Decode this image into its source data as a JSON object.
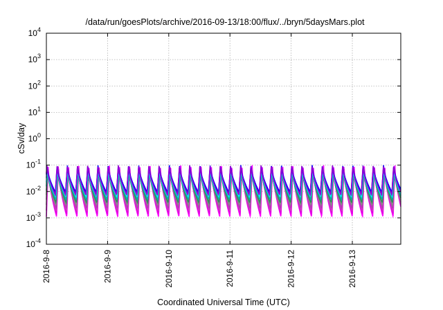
{
  "chart_data": {
    "type": "line",
    "title": "/data/run/goesPlots/archive/2016-09-13/18:00/flux/../bryn/5daysMars.plot",
    "xlabel": "Coordinated Universal Time (UTC)",
    "ylabel": "cSv/day",
    "yscale": "log",
    "ylim": [
      0.0001,
      10000
    ],
    "xlim": [
      "2016-09-08T00:00",
      "2016-09-13T19:00"
    ],
    "grid": true,
    "x_ticks": [
      "2016-9-8",
      "2016-9-9",
      "2016-9-10",
      "2016-9-11",
      "2016-9-12",
      "2016-9-13"
    ],
    "y_ticks": [
      {
        "value": 0.0001,
        "base": "10",
        "exp": "-4"
      },
      {
        "value": 0.001,
        "base": "10",
        "exp": "-3"
      },
      {
        "value": 0.01,
        "base": "10",
        "exp": "-2"
      },
      {
        "value": 0.1,
        "base": "10",
        "exp": "-1"
      },
      {
        "value": 1,
        "base": "10",
        "exp": "0"
      },
      {
        "value": 10,
        "base": "10",
        "exp": "1"
      },
      {
        "value": 100,
        "base": "10",
        "exp": "2"
      },
      {
        "value": 1000,
        "base": "10",
        "exp": "3"
      },
      {
        "value": 10000,
        "base": "10",
        "exp": "4"
      }
    ],
    "cycles_per_day": 6.0,
    "series": [
      {
        "color": "#ff00ff",
        "peak": 0.1,
        "trough": 0.0011
      },
      {
        "color": "#e000e0",
        "peak": 0.09,
        "trough": 0.0014
      },
      {
        "color": "#d040c0",
        "peak": 0.08,
        "trough": 0.0018
      },
      {
        "color": "#b040b0",
        "peak": 0.075,
        "trough": 0.0023
      },
      {
        "color": "#8a8a8a",
        "peak": 0.07,
        "trough": 0.003
      },
      {
        "color": "#2e8b57",
        "peak": 0.068,
        "trough": 0.0038
      },
      {
        "color": "#00b0b0",
        "peak": 0.07,
        "trough": 0.005
      },
      {
        "color": "#00ffff",
        "peak": 0.075,
        "trough": 0.0065
      },
      {
        "color": "#4169e1",
        "peak": 0.09,
        "trough": 0.008
      },
      {
        "color": "#0000ff",
        "peak": 0.1,
        "trough": 0.0095
      },
      {
        "color": "#9400d3",
        "peak": 0.1,
        "trough": 0.0075
      }
    ]
  }
}
